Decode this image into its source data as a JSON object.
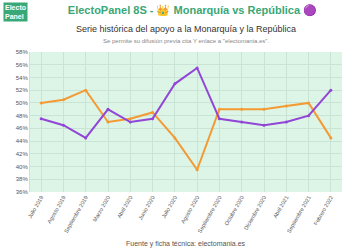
{
  "chart_data": {
    "type": "line",
    "title": "ElectoPanel 8S - 👑 Monarquía vs República 🟣",
    "subtitle": "Serie histórica del apoyo a la Monarquía y la República",
    "note": "Se permite su difusión previa cita Y enlace a \"electomania.es\".",
    "source": "Fuente y ficha técnica: electomania.es",
    "logo": [
      "Electo",
      "Panel"
    ],
    "categories": [
      "Julio 2019",
      "Agosto 2019",
      "Septiembre 2019",
      "Marzo 2020",
      "Abril 2020",
      "Junio 2020",
      "Julio 2020",
      "Agosto 2020",
      "Septiembre 2020",
      "Octubre 2020",
      "Diciembre 2020",
      "Abril 2021",
      "Septiembre 2021",
      "Febrero 2022"
    ],
    "series": [
      {
        "color": "#f39a34",
        "marker": "circle",
        "values": [
          50,
          50.5,
          52,
          47,
          47.5,
          48.5,
          44.5,
          39.5,
          49,
          49,
          49,
          49.5,
          50,
          44.5
        ]
      },
      {
        "color": "#9146d6",
        "marker": "circle",
        "values": [
          47.5,
          46.5,
          44.5,
          49,
          47,
          47.5,
          53,
          55.5,
          47.5,
          47,
          46.5,
          47,
          48,
          52
        ]
      }
    ],
    "ylim": [
      36,
      58
    ],
    "yticks": [
      {
        "value": 36,
        "label": "36%"
      },
      {
        "value": 38,
        "label": "38%"
      },
      {
        "value": 40,
        "label": "40%"
      },
      {
        "value": 42,
        "label": "42%"
      },
      {
        "value": 44,
        "label": "44%"
      },
      {
        "value": 46,
        "label": "46%"
      },
      {
        "value": 48,
        "label": "48%"
      },
      {
        "value": 50,
        "label": "50%"
      },
      {
        "value": 52,
        "label": "52%"
      },
      {
        "value": 54,
        "label": "54%"
      },
      {
        "value": 56,
        "label": "56%"
      },
      {
        "value": 58,
        "label": "58%"
      }
    ],
    "grid": true
  }
}
